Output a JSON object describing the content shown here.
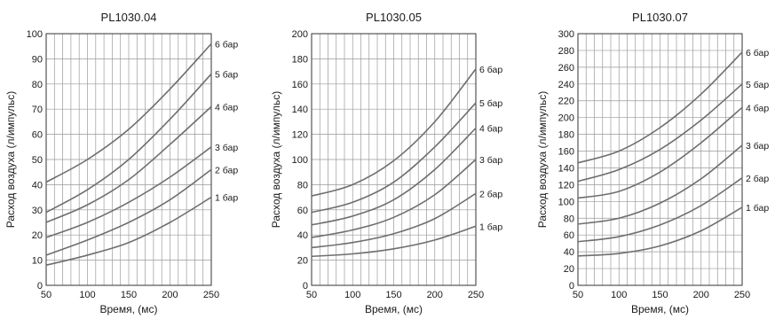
{
  "chart_data": [
    {
      "type": "line",
      "title": "PL1030.04",
      "xlabel": "Время, (мс)",
      "ylabel": "Расход воздуха (л/импульс)",
      "xlim": [
        50,
        250
      ],
      "ylim": [
        0,
        100
      ],
      "xticks": [
        "50",
        "100",
        "150",
        "200",
        "250"
      ],
      "yticks": [
        "0",
        "10",
        "20",
        "30",
        "40",
        "50",
        "60",
        "70",
        "80",
        "90",
        "100"
      ],
      "grid": true,
      "x": [
        50,
        100,
        150,
        200,
        250
      ],
      "series": [
        {
          "name": "1 бар",
          "values": [
            8,
            12,
            17,
            25,
            35
          ]
        },
        {
          "name": "2 бар",
          "values": [
            12,
            18,
            25,
            34,
            46
          ]
        },
        {
          "name": "3 бар",
          "values": [
            19,
            25,
            33,
            43,
            55
          ]
        },
        {
          "name": "4 бар",
          "values": [
            25,
            32,
            42,
            56,
            71
          ]
        },
        {
          "name": "5 бар",
          "values": [
            29,
            38,
            50,
            66,
            84
          ]
        },
        {
          "name": "6 бар",
          "values": [
            41,
            50,
            62,
            78,
            96
          ]
        }
      ]
    },
    {
      "type": "line",
      "title": "PL1030.05",
      "xlabel": "Время, (мс)",
      "ylabel": "Расход воздуха (л/импульс)",
      "xlim": [
        50,
        250
      ],
      "ylim": [
        0,
        200
      ],
      "xticks": [
        "50",
        "100",
        "150",
        "200",
        "250"
      ],
      "yticks": [
        "0",
        "20",
        "40",
        "60",
        "80",
        "100",
        "120",
        "140",
        "160",
        "180",
        "200"
      ],
      "grid": true,
      "x": [
        50,
        100,
        150,
        200,
        250
      ],
      "series": [
        {
          "name": "1 бар",
          "values": [
            23,
            25,
            29,
            36,
            47
          ]
        },
        {
          "name": "2 бар",
          "values": [
            30,
            34,
            41,
            53,
            73
          ]
        },
        {
          "name": "3 бар",
          "values": [
            38,
            44,
            54,
            72,
            100
          ]
        },
        {
          "name": "4 бар",
          "values": [
            48,
            55,
            68,
            92,
            125
          ]
        },
        {
          "name": "5 бар",
          "values": [
            58,
            66,
            82,
            110,
            145
          ]
        },
        {
          "name": "6 бар",
          "values": [
            71,
            80,
            99,
            130,
            172
          ]
        }
      ]
    },
    {
      "type": "line",
      "title": "PL1030.07",
      "xlabel": "Время, (мс)",
      "ylabel": "Расход воздуха (л/импульс)",
      "xlim": [
        50,
        250
      ],
      "ylim": [
        0,
        300
      ],
      "xticks": [
        "50",
        "100",
        "150",
        "200",
        "250"
      ],
      "yticks": [
        "0",
        "20",
        "40",
        "60",
        "80",
        "100",
        "120",
        "140",
        "160",
        "180",
        "200",
        "220",
        "240",
        "260",
        "280",
        "300"
      ],
      "grid": true,
      "x": [
        50,
        100,
        150,
        200,
        250
      ],
      "series": [
        {
          "name": "1 бар",
          "values": [
            35,
            38,
            47,
            65,
            93
          ]
        },
        {
          "name": "2 бар",
          "values": [
            52,
            58,
            72,
            95,
            128
          ]
        },
        {
          "name": "3 бар",
          "values": [
            73,
            80,
            98,
            127,
            167
          ]
        },
        {
          "name": "4 бар",
          "values": [
            104,
            112,
            135,
            170,
            212
          ]
        },
        {
          "name": "5 бар",
          "values": [
            124,
            138,
            162,
            197,
            240
          ]
        },
        {
          "name": "6 бар",
          "values": [
            146,
            160,
            188,
            228,
            278
          ]
        }
      ]
    }
  ]
}
